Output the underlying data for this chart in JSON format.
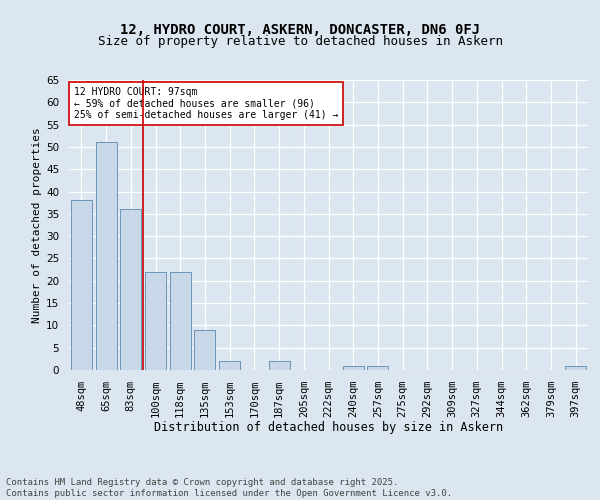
{
  "title1": "12, HYDRO COURT, ASKERN, DONCASTER, DN6 0FJ",
  "title2": "Size of property relative to detached houses in Askern",
  "xlabel": "Distribution of detached houses by size in Askern",
  "ylabel": "Number of detached properties",
  "categories": [
    "48sqm",
    "65sqm",
    "83sqm",
    "100sqm",
    "118sqm",
    "135sqm",
    "153sqm",
    "170sqm",
    "187sqm",
    "205sqm",
    "222sqm",
    "240sqm",
    "257sqm",
    "275sqm",
    "292sqm",
    "309sqm",
    "327sqm",
    "344sqm",
    "362sqm",
    "379sqm",
    "397sqm"
  ],
  "values": [
    38,
    51,
    36,
    22,
    22,
    9,
    2,
    0,
    2,
    0,
    0,
    1,
    1,
    0,
    0,
    0,
    0,
    0,
    0,
    0,
    1
  ],
  "bar_color": "#c8d8e8",
  "bar_edge_color": "#5a8ab0",
  "vline_x": 2.5,
  "vline_color": "#cc0000",
  "annotation_text": "12 HYDRO COURT: 97sqm\n← 59% of detached houses are smaller (96)\n25% of semi-detached houses are larger (41) →",
  "annotation_box_color": "#ffffff",
  "annotation_box_edge": "#cc0000",
  "ylim": [
    0,
    65
  ],
  "yticks": [
    0,
    5,
    10,
    15,
    20,
    25,
    30,
    35,
    40,
    45,
    50,
    55,
    60,
    65
  ],
  "bg_color": "#dce6f0",
  "plot_bg_color": "#dce6f0",
  "footer_text": "Contains HM Land Registry data © Crown copyright and database right 2025.\nContains public sector information licensed under the Open Government Licence v3.0.",
  "title1_fontsize": 10,
  "title2_fontsize": 9,
  "xlabel_fontsize": 8.5,
  "ylabel_fontsize": 8,
  "tick_fontsize": 7.5,
  "annotation_fontsize": 7,
  "footer_fontsize": 6.5
}
